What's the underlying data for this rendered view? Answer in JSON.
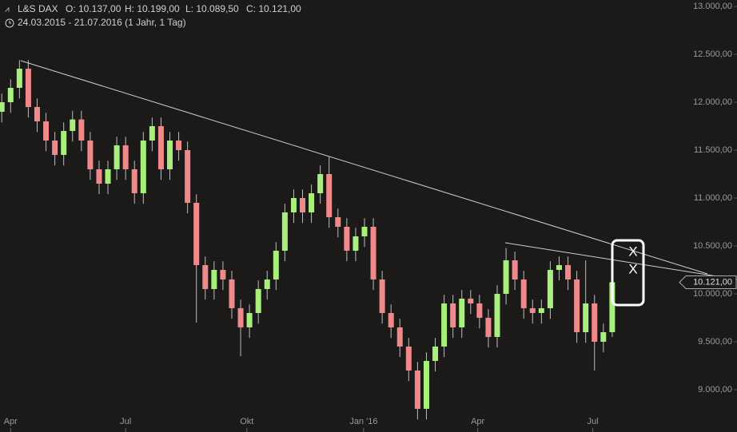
{
  "chart_data": {
    "type": "candlestick",
    "title": "L&S DAX",
    "ohlc_labels": [
      "O: 10.137,00",
      "H: 10.199,00",
      "L: 10.089,50",
      "C: 10.121,00"
    ],
    "subtitle": "24.03.2015 - 21.07.2016 (1 Jahr, 1 Tag)",
    "x": [
      0,
      1,
      2,
      3,
      4,
      5,
      6,
      7,
      8,
      9,
      10,
      11,
      12,
      13,
      14,
      15,
      16,
      17,
      18,
      19,
      20,
      21,
      22,
      23,
      24,
      25,
      26,
      27,
      28,
      29,
      30,
      31,
      32,
      33,
      34,
      35,
      36,
      37,
      38,
      39,
      40,
      41,
      42,
      43,
      44,
      45,
      46,
      47,
      48,
      49,
      50,
      51,
      52,
      53,
      54,
      55,
      56,
      57,
      58,
      59,
      60,
      61,
      62,
      63,
      64,
      65,
      66,
      67,
      68,
      69
    ],
    "open": [
      11900,
      12000,
      12150,
      12350,
      11950,
      11800,
      11600,
      11450,
      11700,
      11820,
      11600,
      11300,
      11150,
      11300,
      11550,
      11300,
      11050,
      11600,
      11750,
      11300,
      11600,
      11500,
      10950,
      10300,
      10050,
      10250,
      10150,
      9850,
      9650,
      9800,
      10050,
      10150,
      10450,
      10850,
      11000,
      10850,
      11050,
      11250,
      10800,
      10700,
      10450,
      10600,
      10700,
      10150,
      9800,
      9650,
      9450,
      9200,
      8800,
      9300,
      9450,
      9900,
      9650,
      9950,
      9900,
      9750,
      9550,
      10000,
      10350,
      10150,
      9850,
      9800,
      9850,
      10250,
      10300,
      10150,
      9600,
      9900,
      9500,
      9600
    ],
    "high": [
      12090,
      12240,
      12440,
      12440,
      12040,
      11890,
      11690,
      11790,
      11910,
      11910,
      11690,
      11390,
      11390,
      11640,
      11640,
      11390,
      11690,
      11840,
      11840,
      11690,
      11690,
      11590,
      11040,
      10390,
      10340,
      10340,
      10240,
      9940,
      9890,
      10140,
      10240,
      10540,
      10940,
      11090,
      11090,
      11140,
      11340,
      11430,
      10890,
      10790,
      10690,
      10790,
      10790,
      10240,
      9890,
      9740,
      9540,
      9290,
      9390,
      9540,
      9990,
      9990,
      10040,
      10040,
      9990,
      9840,
      10090,
      10480,
      10440,
      10240,
      9940,
      9940,
      10340,
      10390,
      10390,
      10240,
      10350,
      9990,
      9690,
      10199
    ],
    "low": [
      11790,
      11890,
      12040,
      11840,
      11690,
      11490,
      11340,
      11340,
      11590,
      11490,
      11190,
      11040,
      11040,
      11190,
      11190,
      10940,
      10940,
      11490,
      11190,
      11190,
      11390,
      10840,
      9700,
      9940,
      9940,
      10040,
      9740,
      9350,
      9540,
      9690,
      9940,
      10040,
      10340,
      10740,
      10740,
      10740,
      10940,
      10690,
      10590,
      10340,
      10340,
      10490,
      10040,
      9690,
      9540,
      9340,
      9090,
      8690,
      8690,
      9190,
      9340,
      9540,
      9540,
      9790,
      9640,
      9440,
      9440,
      9890,
      10040,
      9740,
      9690,
      9690,
      9740,
      10140,
      10040,
      9490,
      9490,
      9200,
      9390,
      9550
    ],
    "close": [
      12000,
      12150,
      12350,
      11950,
      11800,
      11600,
      11450,
      11700,
      11820,
      11600,
      11300,
      11150,
      11300,
      11550,
      11300,
      11050,
      11600,
      11750,
      11300,
      11600,
      11500,
      10950,
      10300,
      10050,
      10250,
      10150,
      9850,
      9650,
      9800,
      10050,
      10150,
      10450,
      10850,
      11000,
      10850,
      11050,
      11250,
      10800,
      10700,
      10450,
      10600,
      10700,
      10150,
      9800,
      9650,
      9450,
      9200,
      8800,
      9300,
      9450,
      9900,
      9650,
      9950,
      9900,
      9750,
      9550,
      10000,
      10350,
      10150,
      9850,
      9800,
      9850,
      10250,
      10300,
      10150,
      9600,
      9900,
      9500,
      9600,
      10121
    ],
    "up_color": "#a8ef7c",
    "down_color": "#f08a8a",
    "last_label": "10.121,00",
    "annotations": [
      "X",
      "X"
    ],
    "xlim": [
      -0.2,
      76.6
    ],
    "xticks": [
      {
        "value": 1.0,
        "label": "Apr"
      },
      {
        "value": 14.0,
        "label": "Jul"
      },
      {
        "value": 27.7,
        "label": "Okt"
      },
      {
        "value": 40.9,
        "label": "Jan '16"
      },
      {
        "value": 53.8,
        "label": "Apr"
      },
      {
        "value": 66.8,
        "label": "Jul"
      }
    ],
    "ylim": [
      8733,
      13067
    ],
    "yticks": [
      {
        "value": 9000,
        "label": "9.000,00"
      },
      {
        "value": 9500,
        "label": "9.500,00"
      },
      {
        "value": 10000,
        "label": "10.000,00"
      },
      {
        "value": 10500,
        "label": "10.500,00"
      },
      {
        "value": 11000,
        "label": "11.000,00"
      },
      {
        "value": 11500,
        "label": "11.500,00"
      },
      {
        "value": 12000,
        "label": "12.000,00"
      },
      {
        "value": 12500,
        "label": "12.500,00"
      },
      {
        "value": 13000,
        "label": "13.000,00"
      }
    ]
  }
}
